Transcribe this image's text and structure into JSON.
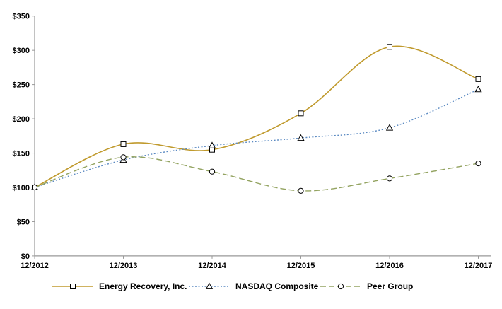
{
  "chart_data": {
    "type": "line",
    "title": "",
    "x_labels": [
      "12/2012",
      "12/2013",
      "12/2014",
      "12/2015",
      "12/2016",
      "12/2017"
    ],
    "y_tick_labels": [
      "$350",
      "$300",
      "$250",
      "$200",
      "$150",
      "$100",
      "$50",
      "$0"
    ],
    "ylim": [
      0,
      350
    ],
    "y_tick_step": 50,
    "grid": false,
    "legend_position": "bottom",
    "axis_color": "#999999",
    "text_color": "#000000",
    "marker_outline_color": "#000000",
    "series": [
      {
        "name": "Energy Recovery, Inc.",
        "marker": "square",
        "line_style": "solid",
        "color": "#C09A2D",
        "values": [
          100,
          163,
          155,
          208,
          305,
          258
        ]
      },
      {
        "name": "NASDAQ Composite",
        "marker": "triangle",
        "line_style": "dotted",
        "color": "#5B8AC2",
        "values": [
          100,
          140,
          161,
          172,
          187,
          243
        ]
      },
      {
        "name": "Peer Group",
        "marker": "circle",
        "line_style": "dashed",
        "color": "#93A360",
        "values": [
          100,
          144,
          123,
          95,
          113,
          135
        ]
      }
    ]
  }
}
